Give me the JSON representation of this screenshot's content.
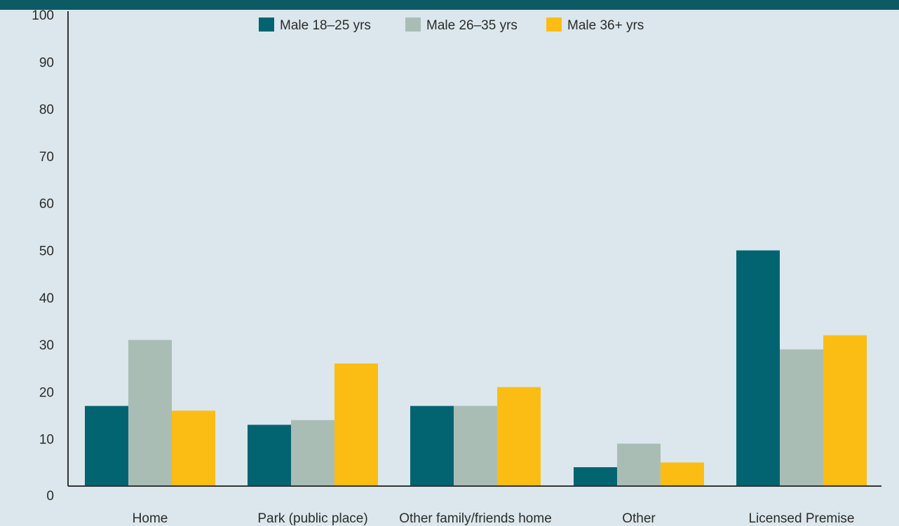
{
  "colors": {
    "background": "#dbe7ec",
    "header_band": "#0b5a64",
    "axis": "#333333",
    "series": [
      "#036471",
      "#a9bdb5",
      "#fbbd13"
    ]
  },
  "chart_data": {
    "type": "bar",
    "title": "",
    "xlabel": "",
    "ylabel": "",
    "ylim": [
      0,
      100
    ],
    "yticks": [
      0,
      10,
      20,
      30,
      40,
      50,
      60,
      70,
      80,
      90,
      100
    ],
    "grid": false,
    "legend_position": "top-center",
    "categories": [
      "Home",
      "Park (public place)",
      "Other family/friends home",
      "Other",
      "Licensed Premise"
    ],
    "series": [
      {
        "name": "Male 18–25 yrs",
        "values": [
          17,
          13,
          17,
          4,
          50
        ]
      },
      {
        "name": "Male 26–35 yrs",
        "values": [
          31,
          14,
          17,
          9,
          29
        ]
      },
      {
        "name": "Male 36+ yrs",
        "values": [
          16,
          26,
          21,
          5,
          32
        ]
      }
    ]
  }
}
